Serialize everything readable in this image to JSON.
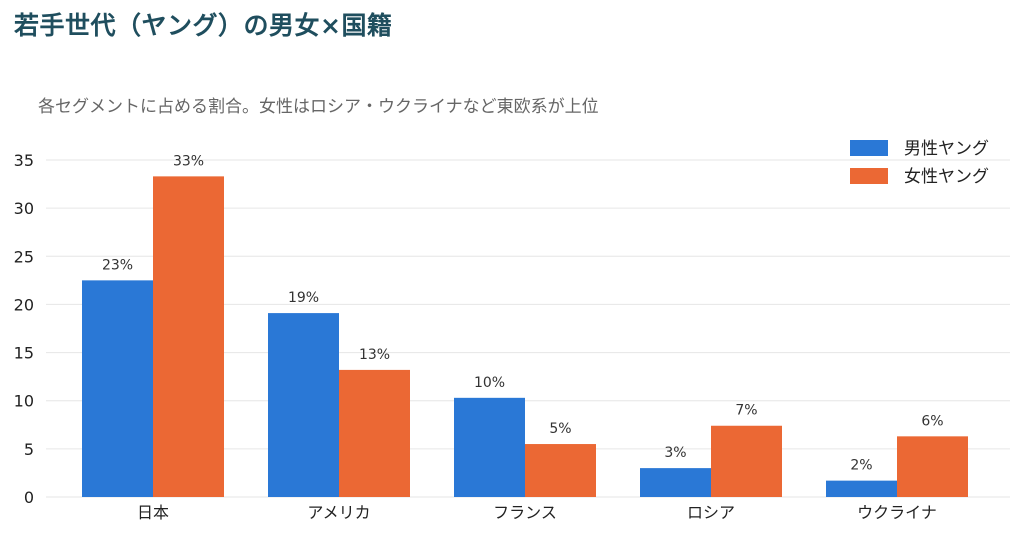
{
  "title": "若手世代（ヤング）の男女×国籍",
  "subtitle": "各セグメントに占める割合。女性はロシア・ウクライナなど東欧系が上位",
  "colors": {
    "male": "#2a78d6",
    "female": "#eb6834",
    "grid": "#e6e6e6",
    "title": "#1f4e5e"
  },
  "chart_data": {
    "type": "bar",
    "categories": [
      "日本",
      "アメリカ",
      "フランス",
      "ロシア",
      "ウクライナ"
    ],
    "series": [
      {
        "name": "男性ヤング",
        "values": [
          22.5,
          19.1,
          10.3,
          3.0,
          1.7
        ],
        "labels": [
          "23%",
          "19%",
          "10%",
          "3%",
          "2%"
        ]
      },
      {
        "name": "女性ヤング",
        "values": [
          33.3,
          13.2,
          5.5,
          7.4,
          6.3
        ],
        "labels": [
          "33%",
          "13%",
          "5%",
          "7%",
          "6%"
        ]
      }
    ],
    "yticks": [
      "0",
      "5",
      "10",
      "15",
      "20",
      "25",
      "30",
      "35"
    ],
    "ylim": [
      0,
      35
    ],
    "grid": true,
    "legend": "top-right"
  }
}
